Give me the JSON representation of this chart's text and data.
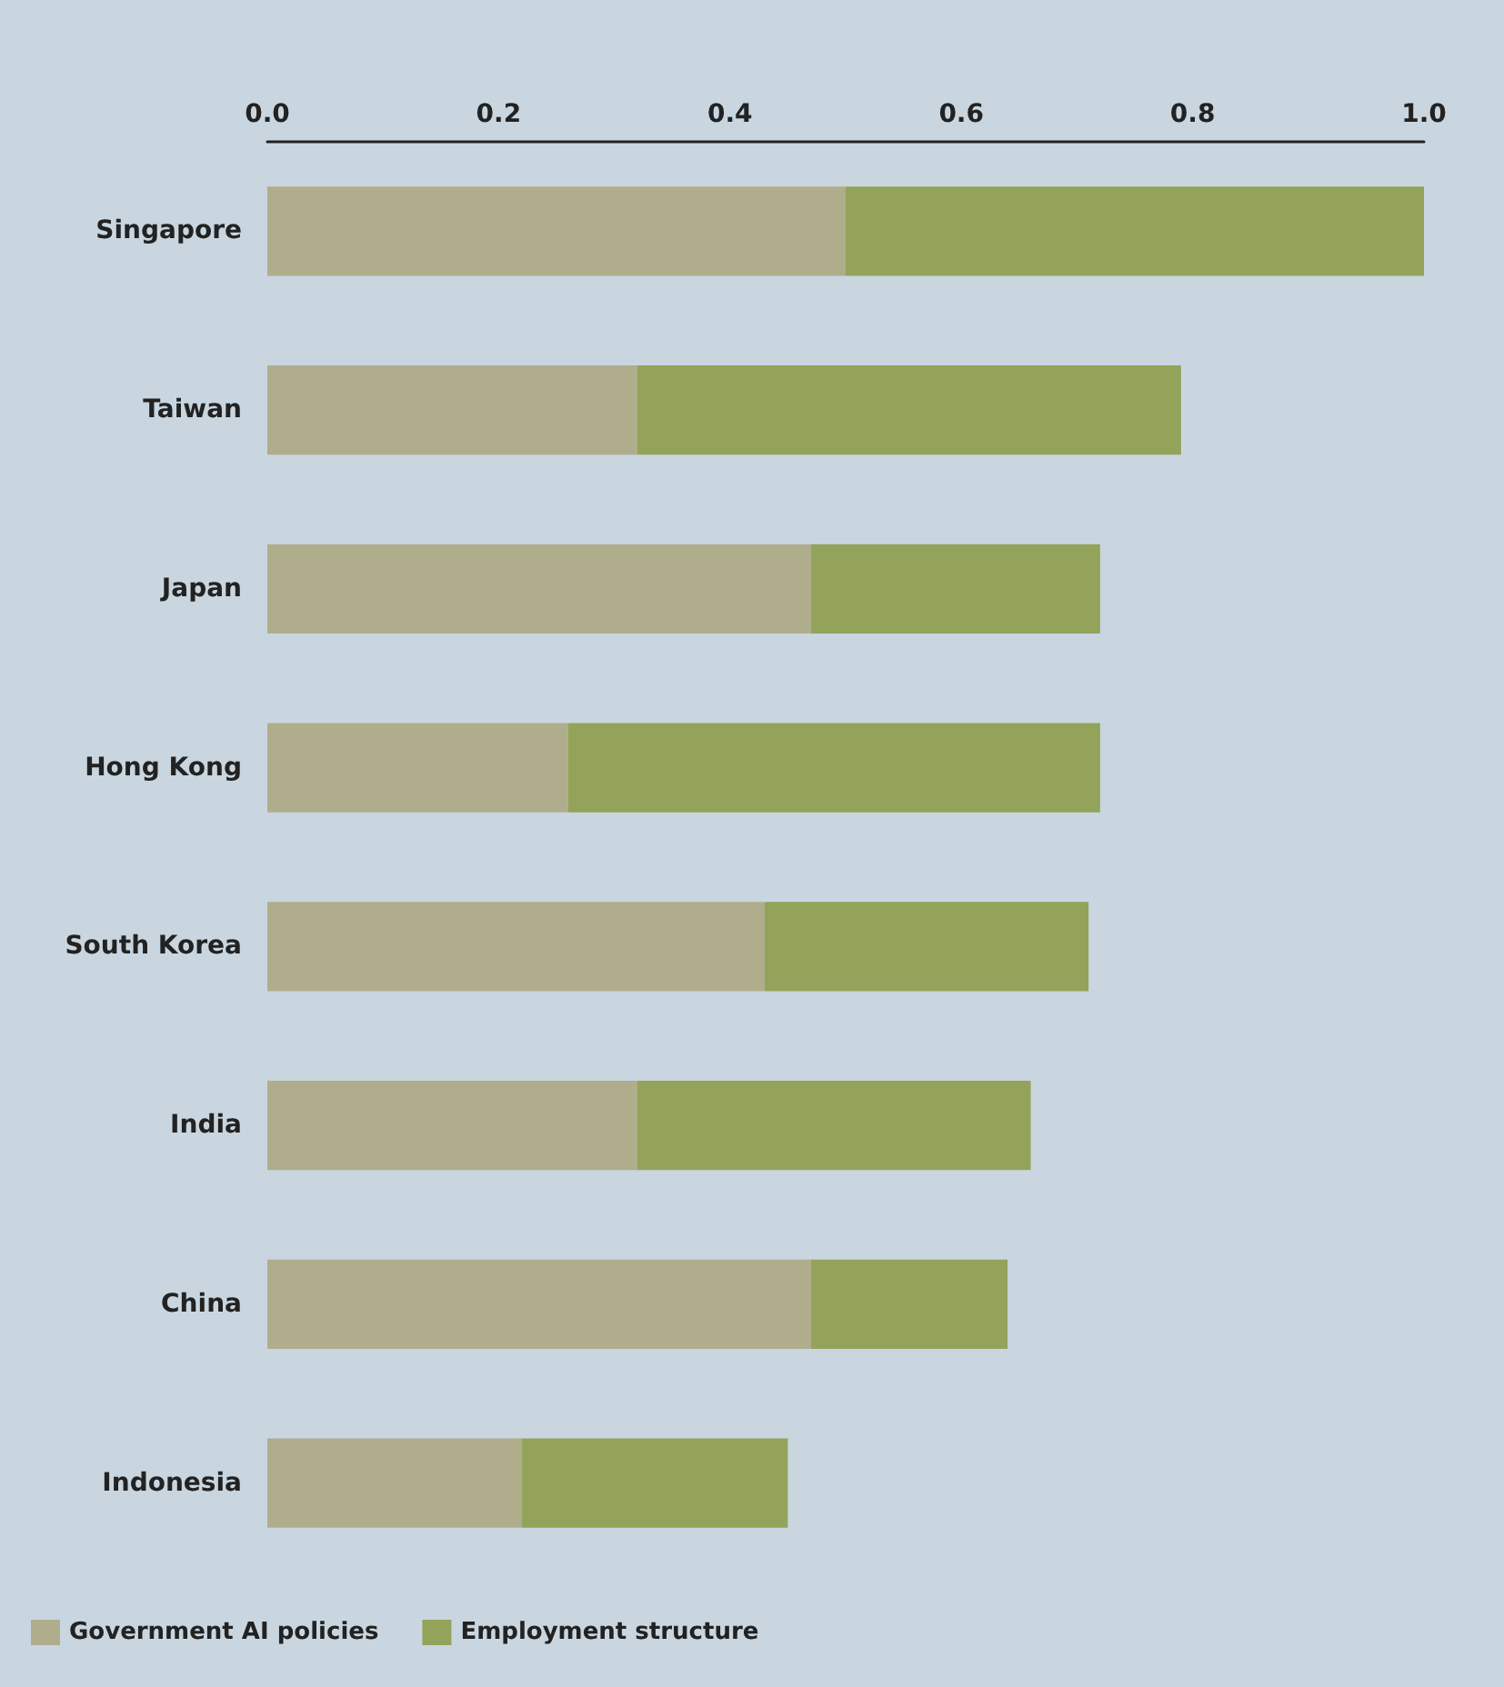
{
  "chart_data": {
    "type": "bar",
    "orientation": "horizontal",
    "stacked": true,
    "categories": [
      "Singapore",
      "Taiwan",
      "Japan",
      "Hong Kong",
      "South Korea",
      "India",
      "China",
      "Indonesia"
    ],
    "series": [
      {
        "name": "Government AI policies",
        "color": "#b0ad8c",
        "values": [
          0.5,
          0.32,
          0.47,
          0.26,
          0.43,
          0.32,
          0.47,
          0.22
        ]
      },
      {
        "name": "Employment structure",
        "color": "#93a35a",
        "values": [
          0.5,
          0.47,
          0.25,
          0.46,
          0.28,
          0.34,
          0.17,
          0.23
        ]
      }
    ],
    "xlim": [
      0,
      1
    ],
    "xticks": [
      {
        "value": 0,
        "label": "0.0"
      },
      {
        "value": 0.2,
        "label": "0.2"
      },
      {
        "value": 0.4,
        "label": "0.4"
      },
      {
        "value": 0.6,
        "label": "0.6"
      },
      {
        "value": 0.8,
        "label": "0.8"
      },
      {
        "value": 1,
        "label": "1.0"
      }
    ],
    "grid": false,
    "legend": "bottom left"
  }
}
